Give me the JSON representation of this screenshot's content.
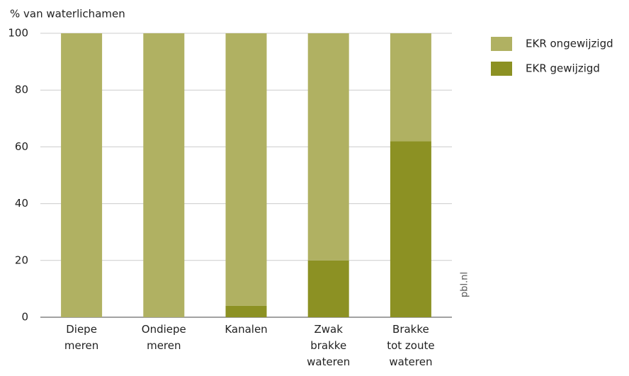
{
  "chart_data": {
    "type": "stacked_bar",
    "y_label": "% van waterlichamen",
    "source": "pbl.nl",
    "categories": [
      "Diepe\nmeren",
      "Ondiepe\nmeren",
      "Kanalen",
      "Zwak\nbrakke\nwateren",
      "Brakke\ntot zoute\nwateren"
    ],
    "series": [
      {
        "name": "EKR gewijzigd",
        "color": "#8c9123",
        "values": [
          0,
          0,
          4,
          20,
          62
        ]
      },
      {
        "name": "EKR ongewijzigd",
        "color": "#b0b162",
        "values": [
          100,
          100,
          96,
          80,
          38
        ]
      }
    ],
    "ylim": [
      0,
      100
    ],
    "yticks": [
      0,
      20,
      40,
      60,
      80,
      100
    ],
    "grid": true,
    "legend": "right"
  }
}
